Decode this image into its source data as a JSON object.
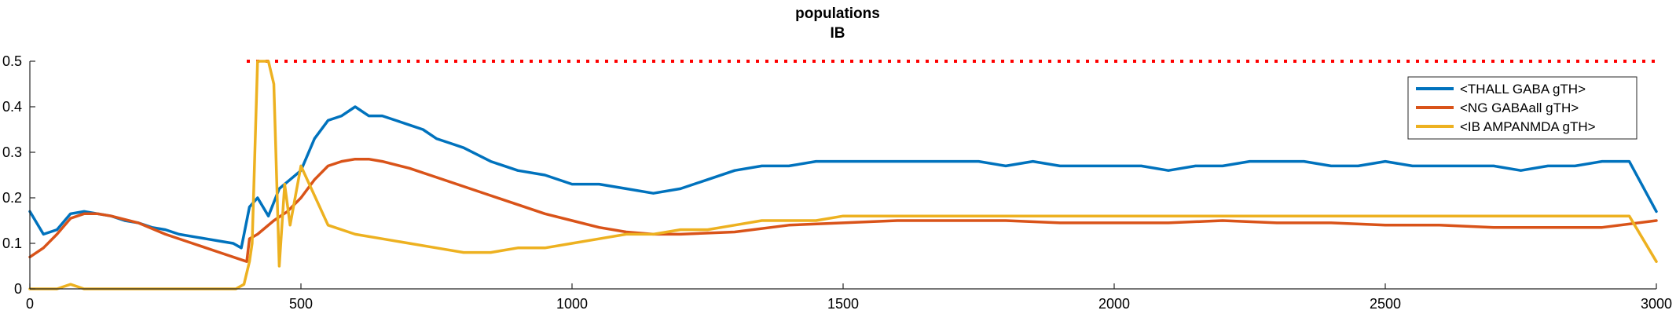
{
  "chart_data": {
    "type": "line",
    "title": "populations",
    "subtitle": "IB",
    "xlabel": "",
    "ylabel": "",
    "xlim": [
      0,
      3000
    ],
    "ylim": [
      0,
      0.5
    ],
    "xticks": [
      0,
      500,
      1000,
      1500,
      2000,
      2500,
      3000
    ],
    "yticks": [
      0,
      0.1,
      0.2,
      0.3,
      0.4,
      0.5
    ],
    "ytick_labels": [
      "0",
      "0.1",
      "0.2",
      "0.3",
      "0.4",
      "0.5"
    ],
    "grid": false,
    "legend_position": "top-right",
    "reference_line": {
      "y": 0.5,
      "x_start": 400,
      "x_end": 3000,
      "color": "#ff0000",
      "style": "dotted"
    },
    "series": [
      {
        "name": "<THALL GABA gTH>",
        "color": "#0072bd",
        "x": [
          0,
          25,
          50,
          75,
          100,
          125,
          150,
          175,
          200,
          225,
          250,
          275,
          300,
          325,
          350,
          375,
          390,
          405,
          420,
          440,
          460,
          480,
          500,
          525,
          550,
          575,
          600,
          625,
          650,
          675,
          700,
          725,
          750,
          775,
          800,
          850,
          900,
          950,
          1000,
          1050,
          1100,
          1150,
          1200,
          1250,
          1300,
          1350,
          1400,
          1450,
          1500,
          1550,
          1600,
          1650,
          1700,
          1750,
          1800,
          1850,
          1900,
          1950,
          2000,
          2050,
          2100,
          2150,
          2200,
          2250,
          2300,
          2350,
          2400,
          2450,
          2500,
          2550,
          2600,
          2650,
          2700,
          2750,
          2800,
          2850,
          2900,
          2950,
          3000
        ],
        "y": [
          0.17,
          0.12,
          0.13,
          0.165,
          0.17,
          0.165,
          0.16,
          0.15,
          0.145,
          0.135,
          0.13,
          0.12,
          0.115,
          0.11,
          0.105,
          0.1,
          0.09,
          0.18,
          0.2,
          0.16,
          0.22,
          0.24,
          0.26,
          0.33,
          0.37,
          0.38,
          0.4,
          0.38,
          0.38,
          0.37,
          0.36,
          0.35,
          0.33,
          0.32,
          0.31,
          0.28,
          0.26,
          0.25,
          0.23,
          0.23,
          0.22,
          0.21,
          0.22,
          0.24,
          0.26,
          0.27,
          0.27,
          0.28,
          0.28,
          0.28,
          0.28,
          0.28,
          0.28,
          0.28,
          0.27,
          0.28,
          0.27,
          0.27,
          0.27,
          0.27,
          0.26,
          0.27,
          0.27,
          0.28,
          0.28,
          0.28,
          0.27,
          0.27,
          0.28,
          0.27,
          0.27,
          0.27,
          0.27,
          0.26,
          0.27,
          0.27,
          0.28,
          0.28,
          0.17
        ]
      },
      {
        "name": "<NG GABAall gTH>",
        "color": "#d95319",
        "x": [
          0,
          25,
          50,
          75,
          100,
          125,
          150,
          200,
          250,
          300,
          350,
          400,
          405,
          420,
          450,
          475,
          500,
          525,
          550,
          575,
          600,
          625,
          650,
          700,
          750,
          800,
          850,
          900,
          950,
          1000,
          1050,
          1100,
          1150,
          1200,
          1300,
          1400,
          1500,
          1600,
          1700,
          1800,
          1900,
          2000,
          2100,
          2200,
          2300,
          2400,
          2500,
          2600,
          2700,
          2800,
          2900,
          3000
        ],
        "y": [
          0.07,
          0.09,
          0.12,
          0.155,
          0.165,
          0.165,
          0.16,
          0.145,
          0.12,
          0.1,
          0.08,
          0.06,
          0.11,
          0.12,
          0.15,
          0.17,
          0.2,
          0.24,
          0.27,
          0.28,
          0.285,
          0.285,
          0.28,
          0.265,
          0.245,
          0.225,
          0.205,
          0.185,
          0.165,
          0.15,
          0.135,
          0.125,
          0.12,
          0.12,
          0.125,
          0.14,
          0.145,
          0.15,
          0.15,
          0.15,
          0.145,
          0.145,
          0.145,
          0.15,
          0.145,
          0.145,
          0.14,
          0.14,
          0.135,
          0.135,
          0.135,
          0.15
        ]
      },
      {
        "name": "<IB AMPANMDA gTH>",
        "color": "#edb120",
        "x": [
          0,
          50,
          75,
          100,
          200,
          300,
          380,
          395,
          405,
          410,
          420,
          430,
          440,
          450,
          460,
          470,
          480,
          500,
          550,
          600,
          650,
          700,
          750,
          800,
          850,
          900,
          950,
          1000,
          1050,
          1100,
          1150,
          1200,
          1250,
          1300,
          1350,
          1400,
          1450,
          1500,
          1550,
          1600,
          1650,
          1700,
          1750,
          1800,
          1850,
          1900,
          1950,
          2000,
          2050,
          2100,
          2150,
          2200,
          2250,
          2300,
          2350,
          2400,
          2450,
          2500,
          2550,
          2600,
          2650,
          2700,
          2750,
          2800,
          2850,
          2900,
          2950,
          3000
        ],
        "y": [
          0.0,
          0.0,
          0.01,
          0.0,
          0.0,
          0.0,
          0.0,
          0.01,
          0.06,
          0.1,
          0.5,
          0.5,
          0.5,
          0.45,
          0.05,
          0.23,
          0.14,
          0.27,
          0.14,
          0.12,
          0.11,
          0.1,
          0.09,
          0.08,
          0.08,
          0.09,
          0.09,
          0.1,
          0.11,
          0.12,
          0.12,
          0.13,
          0.13,
          0.14,
          0.15,
          0.15,
          0.15,
          0.16,
          0.16,
          0.16,
          0.16,
          0.16,
          0.16,
          0.16,
          0.16,
          0.16,
          0.16,
          0.16,
          0.16,
          0.16,
          0.16,
          0.16,
          0.16,
          0.16,
          0.16,
          0.16,
          0.16,
          0.16,
          0.16,
          0.16,
          0.16,
          0.16,
          0.16,
          0.16,
          0.16,
          0.16,
          0.16,
          0.06
        ]
      }
    ]
  }
}
